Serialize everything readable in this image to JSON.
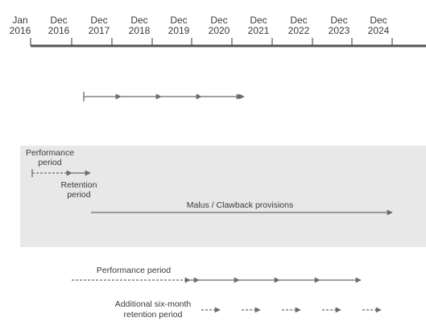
{
  "timeline": {
    "ticks": [
      {
        "month": "Jan",
        "year": "2016"
      },
      {
        "month": "Dec",
        "year": "2016"
      },
      {
        "month": "Dec",
        "year": "2017"
      },
      {
        "month": "Dec",
        "year": "2018"
      },
      {
        "month": "Dec",
        "year": "2019"
      },
      {
        "month": "Dec",
        "year": "2020"
      },
      {
        "month": "Dec",
        "year": "2021"
      },
      {
        "month": "Dec",
        "year": "2022"
      },
      {
        "month": "Dec",
        "year": "2023"
      },
      {
        "month": "Dec",
        "year": "2024"
      }
    ]
  },
  "annotations": {
    "performance_period_top_line1": "Performance",
    "performance_period_top_line2": "period",
    "retention_period_line1": "Retention",
    "retention_period_line2": "period",
    "malus_clawback": "Malus / Clawback provisions",
    "performance_period_bottom": "Performance period",
    "additional_retention_line1": "Additional six-month",
    "additional_retention_line2": "retention period"
  },
  "colors": {
    "axis": "#555555",
    "arrow": "#6b6b6b",
    "text": "#3a3a3a",
    "shaded_band": "#e8e8e8"
  }
}
